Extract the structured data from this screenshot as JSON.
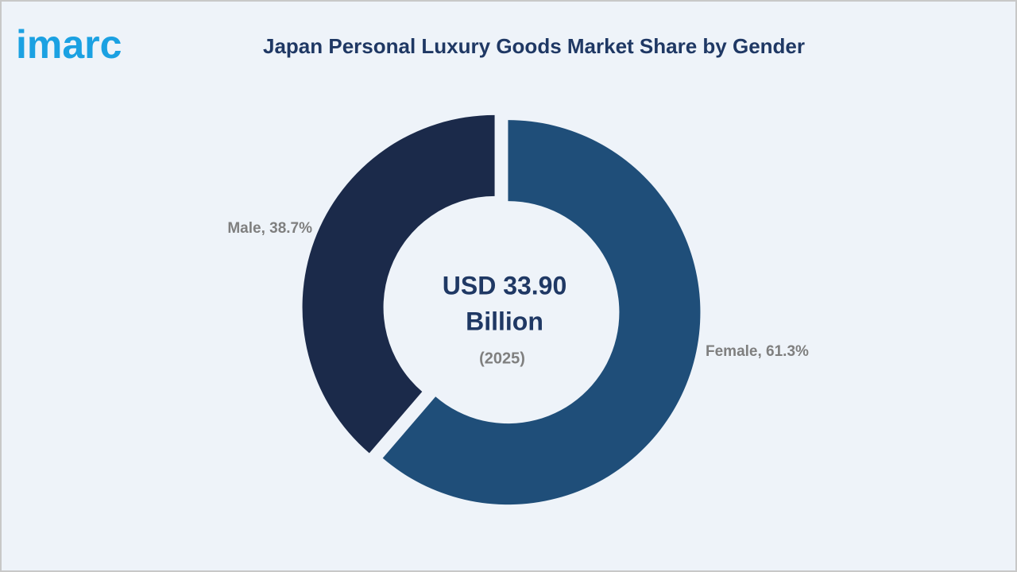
{
  "logo": "imarc",
  "chart_data": {
    "type": "pie",
    "donut": true,
    "title": "Japan Personal Luxury Goods Market Share by Gender",
    "categories": [
      "Female",
      "Male"
    ],
    "values": [
      61.3,
      38.7
    ],
    "value_labels": [
      "Female, 61.3%",
      "Male, 38.7%"
    ],
    "colors": [
      "#1f4e79",
      "#1b2a4a"
    ],
    "center_text": [
      "USD 33.90",
      "Billion"
    ],
    "center_subtext": "(2025)"
  }
}
